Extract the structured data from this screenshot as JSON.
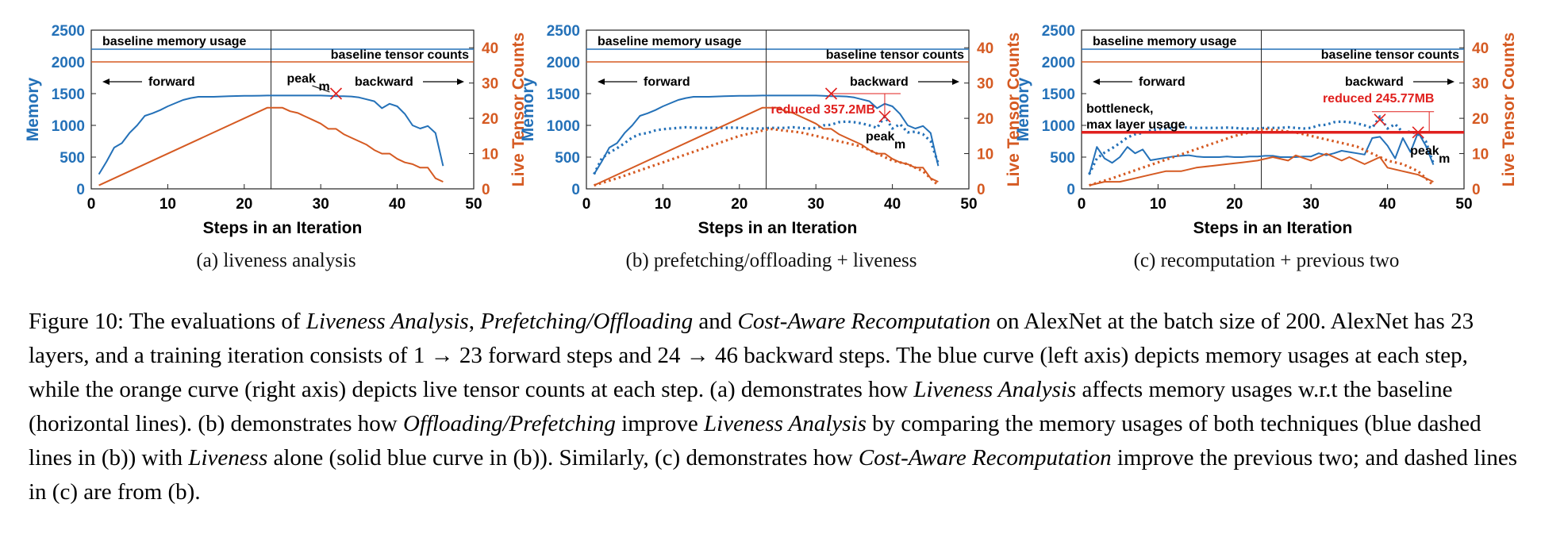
{
  "colors": {
    "memory": "#2471b8",
    "tensor": "#d55a22",
    "annotation_red": "#e0201e",
    "bottleneck": "#e0201e",
    "frame": "#000000"
  },
  "chart_data": [
    {
      "type": "line",
      "subcaption": "(a) liveness analysis",
      "xlabel": "Steps in an Iteration",
      "ylabel_left": "Memory",
      "ylabel_right": "Live Tensor Counts",
      "xlim": [
        0,
        50
      ],
      "xticks": [
        0,
        10,
        20,
        30,
        40,
        50
      ],
      "ylim_left": [
        0,
        2500
      ],
      "yticks_left": [
        0,
        500,
        1000,
        1500,
        2000,
        2500
      ],
      "ylim_right": [
        0,
        45
      ],
      "yticks_right": [
        0,
        10,
        20,
        30,
        40
      ],
      "baseline_memory": 2200,
      "baseline_tensor": 36,
      "divider_x": 23.5,
      "annotations": {
        "baseline_memory": "baseline memory usage",
        "baseline_tensor": "baseline tensor counts",
        "forward": "forward",
        "backward": "backward",
        "peak": "peak",
        "peak_sub": "m"
      },
      "peak_marker": {
        "x": 32,
        "y": 1500
      },
      "series": [
        {
          "name": "memory",
          "axis": "left",
          "style": "solid",
          "x": [
            1,
            2,
            3,
            4,
            5,
            6,
            7,
            8,
            9,
            10,
            11,
            12,
            13,
            14,
            15,
            16,
            17,
            18,
            19,
            20,
            21,
            22,
            23,
            24,
            25,
            26,
            27,
            28,
            29,
            30,
            31,
            32,
            33,
            34,
            35,
            36,
            37,
            38,
            39,
            40,
            41,
            42,
            43,
            44,
            45,
            46
          ],
          "y": [
            230,
            430,
            650,
            720,
            880,
            1000,
            1150,
            1190,
            1240,
            1300,
            1350,
            1400,
            1430,
            1450,
            1450,
            1450,
            1455,
            1460,
            1462,
            1465,
            1466,
            1468,
            1470,
            1470,
            1470,
            1470,
            1470,
            1470,
            1470,
            1470,
            1465,
            1460,
            1460,
            1455,
            1440,
            1410,
            1380,
            1270,
            1340,
            1300,
            1180,
            1000,
            950,
            990,
            880,
            360
          ]
        },
        {
          "name": "tensor",
          "axis": "right",
          "style": "solid",
          "x": [
            1,
            23,
            24,
            25,
            26,
            27,
            28,
            29,
            30,
            31,
            32,
            33,
            34,
            35,
            36,
            37,
            38,
            39,
            40,
            41,
            42,
            43,
            44,
            45,
            46
          ],
          "y": [
            1,
            23,
            23,
            23,
            22,
            21.5,
            20.5,
            19.5,
            18.5,
            17,
            17,
            15.5,
            14.5,
            13.5,
            12.5,
            11,
            10,
            10,
            8.5,
            7.5,
            7,
            6,
            6,
            3,
            2
          ]
        }
      ]
    },
    {
      "type": "line",
      "subcaption": "(b) prefetching/offloading + liveness",
      "xlabel": "Steps in an Iteration",
      "ylabel_left": "Memory",
      "ylabel_right": "Live Tensor Counts",
      "xlim": [
        0,
        50
      ],
      "xticks": [
        0,
        10,
        20,
        30,
        40,
        50
      ],
      "ylim_left": [
        0,
        2500
      ],
      "yticks_left": [
        0,
        500,
        1000,
        1500,
        2000,
        2500
      ],
      "ylim_right": [
        0,
        45
      ],
      "yticks_right": [
        0,
        10,
        20,
        30,
        40
      ],
      "baseline_memory": 2200,
      "baseline_tensor": 36,
      "divider_x": 23.5,
      "annotations": {
        "baseline_memory": "baseline memory usage",
        "baseline_tensor": "baseline tensor counts",
        "forward": "forward",
        "backward": "backward",
        "peak": "peak",
        "peak_sub": "m",
        "reduced": "reduced 357.2MB"
      },
      "peak_marker": {
        "x": 32,
        "y": 1500
      },
      "reduced_marker": {
        "x": 39,
        "y": 1140
      },
      "series": [
        {
          "name": "memory (liveness)",
          "axis": "left",
          "style": "solid",
          "x": [
            1,
            2,
            3,
            4,
            5,
            6,
            7,
            8,
            9,
            10,
            11,
            12,
            13,
            14,
            15,
            16,
            17,
            18,
            19,
            20,
            21,
            22,
            23,
            24,
            25,
            26,
            27,
            28,
            29,
            30,
            31,
            32,
            33,
            34,
            35,
            36,
            37,
            38,
            39,
            40,
            41,
            42,
            43,
            44,
            45,
            46
          ],
          "y": [
            230,
            430,
            650,
            720,
            880,
            1000,
            1150,
            1190,
            1240,
            1300,
            1350,
            1400,
            1430,
            1450,
            1450,
            1450,
            1455,
            1460,
            1462,
            1465,
            1466,
            1468,
            1470,
            1470,
            1470,
            1470,
            1470,
            1470,
            1470,
            1470,
            1465,
            1460,
            1460,
            1455,
            1440,
            1410,
            1380,
            1270,
            1340,
            1300,
            1180,
            1000,
            950,
            990,
            880,
            360
          ]
        },
        {
          "name": "memory (prefetch/offload)",
          "axis": "left",
          "style": "dashed",
          "x": [
            1,
            2,
            3,
            4,
            5,
            6,
            7,
            8,
            9,
            10,
            11,
            12,
            13,
            14,
            15,
            16,
            17,
            18,
            19,
            20,
            21,
            22,
            23,
            24,
            25,
            26,
            27,
            28,
            29,
            30,
            31,
            32,
            33,
            34,
            35,
            36,
            37,
            38,
            39,
            40,
            41,
            42,
            43,
            44,
            45,
            46
          ],
          "y": [
            230,
            480,
            570,
            640,
            720,
            810,
            860,
            880,
            920,
            940,
            950,
            960,
            970,
            965,
            960,
            960,
            960,
            960,
            965,
            960,
            950,
            950,
            950,
            960,
            960,
            960,
            970,
            960,
            950,
            960,
            1000,
            1010,
            1050,
            1060,
            1050,
            1030,
            1000,
            960,
            1140,
            950,
            1020,
            890,
            900,
            860,
            750,
            400
          ]
        },
        {
          "name": "tensor (liveness)",
          "axis": "right",
          "style": "solid",
          "x": [
            1,
            23,
            24,
            25,
            26,
            27,
            28,
            29,
            30,
            31,
            32,
            33,
            34,
            35,
            36,
            37,
            38,
            39,
            40,
            41,
            42,
            43,
            44,
            45,
            46
          ],
          "y": [
            1,
            23,
            23,
            23,
            22,
            21.5,
            20.5,
            19.5,
            18.5,
            17,
            17,
            15.5,
            14.5,
            13.5,
            12.5,
            11,
            10,
            10,
            8.5,
            7.5,
            7,
            6,
            6,
            3,
            2
          ]
        },
        {
          "name": "tensor (prefetch/offload)",
          "axis": "right",
          "style": "dashed",
          "x": [
            1,
            4,
            8,
            12,
            16,
            20,
            24,
            26,
            28,
            30,
            32,
            34,
            36,
            38,
            40,
            42,
            44,
            46
          ],
          "y": [
            1,
            3,
            6,
            9,
            12,
            15,
            17,
            16.5,
            16,
            15,
            14,
            13,
            12,
            10,
            8,
            7,
            5,
            1
          ]
        }
      ]
    },
    {
      "type": "line",
      "subcaption": "(c) recomputation + previous two",
      "xlabel": "Steps in an Iteration",
      "ylabel_left": "Memory",
      "ylabel_right": "Live Tensor Counts",
      "xlim": [
        0,
        50
      ],
      "xticks": [
        0,
        10,
        20,
        30,
        40,
        50
      ],
      "ylim_left": [
        0,
        2500
      ],
      "yticks_left": [
        0,
        500,
        1000,
        1500,
        2000,
        2500
      ],
      "ylim_right": [
        0,
        45
      ],
      "yticks_right": [
        0,
        10,
        20,
        30,
        40
      ],
      "baseline_memory": 2200,
      "baseline_tensor": 36,
      "divider_x": 23.5,
      "bottleneck_y": 890,
      "annotations": {
        "baseline_memory": "baseline memory usage",
        "baseline_tensor": "baseline tensor counts",
        "forward": "forward",
        "backward": "backward",
        "peak": "peak",
        "peak_sub": "m",
        "reduced": "reduced 245.77MB",
        "bottleneck": "bottleneck,",
        "bottleneck2": "max layer usage"
      },
      "peak_marker": {
        "x": 39,
        "y": 1090
      },
      "reduced_marker": {
        "x": 44,
        "y": 890
      },
      "series": [
        {
          "name": "memory (prefetch/offload)",
          "axis": "left",
          "style": "dashed",
          "x": [
            1,
            2,
            3,
            4,
            5,
            6,
            7,
            8,
            9,
            10,
            11,
            12,
            13,
            14,
            15,
            16,
            17,
            18,
            19,
            20,
            21,
            22,
            23,
            24,
            25,
            26,
            27,
            28,
            29,
            30,
            31,
            32,
            33,
            34,
            35,
            36,
            37,
            38,
            39,
            40,
            41,
            42,
            43,
            44,
            45,
            46
          ],
          "y": [
            230,
            480,
            570,
            640,
            720,
            810,
            860,
            880,
            920,
            940,
            950,
            960,
            970,
            965,
            960,
            960,
            960,
            960,
            965,
            960,
            950,
            950,
            950,
            960,
            960,
            960,
            970,
            960,
            950,
            960,
            1000,
            1010,
            1050,
            1060,
            1050,
            1030,
            1000,
            960,
            1140,
            950,
            1020,
            890,
            900,
            860,
            750,
            400
          ]
        },
        {
          "name": "memory (recomputation)",
          "axis": "left",
          "style": "solid",
          "x": [
            1,
            2,
            3,
            4,
            5,
            6,
            7,
            8,
            9,
            10,
            11,
            12,
            13,
            14,
            15,
            16,
            17,
            18,
            19,
            20,
            21,
            22,
            23,
            24,
            25,
            26,
            27,
            28,
            29,
            30,
            31,
            32,
            33,
            34,
            35,
            36,
            37,
            38,
            39,
            40,
            41,
            42,
            43,
            44,
            45,
            46
          ],
          "y": [
            220,
            660,
            480,
            410,
            500,
            660,
            560,
            620,
            450,
            470,
            490,
            510,
            520,
            530,
            510,
            500,
            500,
            500,
            510,
            500,
            500,
            510,
            510,
            520,
            520,
            500,
            500,
            500,
            510,
            510,
            560,
            530,
            560,
            600,
            580,
            560,
            540,
            800,
            820,
            680,
            480,
            800,
            580,
            890,
            680,
            380
          ]
        },
        {
          "name": "tensor (prefetch/offload)",
          "axis": "right",
          "style": "dashed",
          "x": [
            1,
            4,
            8,
            12,
            16,
            20,
            24,
            26,
            28,
            30,
            32,
            34,
            36,
            38,
            40,
            42,
            44,
            46
          ],
          "y": [
            1,
            3,
            6,
            9,
            12,
            15,
            17,
            16.5,
            16,
            15,
            14,
            13,
            12,
            10,
            8,
            7,
            5,
            1
          ]
        },
        {
          "name": "tensor (recomputation)",
          "axis": "right",
          "style": "solid",
          "x": [
            1,
            3,
            5,
            7,
            9,
            11,
            13,
            15,
            17,
            19,
            21,
            23,
            25,
            27,
            28,
            30,
            32,
            34,
            35,
            37,
            39,
            40,
            42,
            44,
            46
          ],
          "y": [
            1,
            2,
            2,
            3,
            4,
            5,
            5,
            6,
            6.5,
            7,
            7.5,
            8,
            9,
            8,
            9.5,
            8,
            10,
            8,
            9,
            7,
            9,
            6,
            5,
            4,
            2
          ]
        }
      ]
    }
  ],
  "caption": {
    "line1": [
      {
        "t": "Figure 10: The evaluations of ",
        "i": false
      },
      {
        "t": "Liveness Analysis",
        "i": true
      },
      {
        "t": ", ",
        "i": false
      },
      {
        "t": "Prefetching/Offloading",
        "i": true
      },
      {
        "t": " and ",
        "i": false
      },
      {
        "t": "Cost-Aware Recomputation",
        "i": true
      },
      {
        "t": " on AlexNet at the batch size of 200. AlexNet has 23 layers, and a training iteration consists of 1 → 23 forward steps and 24 → 46 backward steps. The blue curve (left axis) depicts memory usages at each step, while the orange curve (right axis) depicts live tensor counts at each step. (a) demonstrates how ",
        "i": false
      },
      {
        "t": "Liveness Analysis",
        "i": true
      },
      {
        "t": " affects memory usages w.r.t the baseline (horizontal lines). (b) demonstrates how ",
        "i": false
      },
      {
        "t": "Offloading/Prefetching",
        "i": true
      },
      {
        "t": " improve ",
        "i": false
      },
      {
        "t": "Liveness Analysis",
        "i": true
      },
      {
        "t": " by comparing the memory usages of both techniques (blue dashed lines in (b)) with ",
        "i": false
      },
      {
        "t": "Liveness",
        "i": true
      },
      {
        "t": " alone (solid blue curve in (b)). Similarly, (c) demonstrates how ",
        "i": false
      },
      {
        "t": "Cost-Aware Recomputation",
        "i": true
      },
      {
        "t": " improve the previous two; and dashed lines in (c) are from (b).",
        "i": false
      }
    ]
  }
}
